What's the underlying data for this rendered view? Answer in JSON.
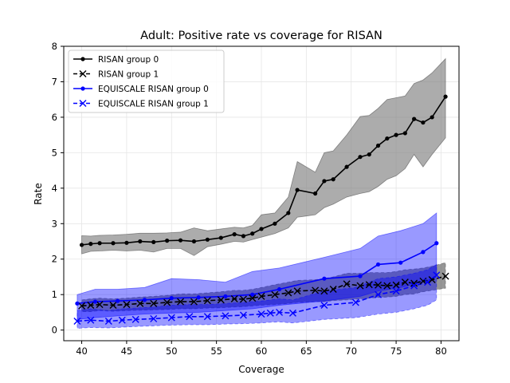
{
  "chart_data": {
    "type": "line",
    "title": "Adult: Positive rate vs coverage for RISAN",
    "xlabel": "Coverage",
    "ylabel": "Rate",
    "xlim": [
      38.0,
      82.0
    ],
    "ylim": [
      -0.3,
      8.0
    ],
    "xticks": [
      40,
      45,
      50,
      55,
      60,
      65,
      70,
      75,
      80
    ],
    "yticks": [
      0,
      1,
      2,
      3,
      4,
      5,
      6,
      7,
      8
    ],
    "grid": true,
    "legend_position": "upper-left",
    "series": [
      {
        "name": "RISAN group 0",
        "color": "#000000",
        "marker": "dot",
        "dash": "solid",
        "band_color": "#808080",
        "x": [
          40,
          41,
          42,
          43.5,
          45,
          46.5,
          48,
          49.5,
          51,
          52.5,
          54,
          55.5,
          57,
          58,
          59,
          60,
          61.5,
          63,
          64,
          66,
          67,
          68,
          69.5,
          71,
          72,
          73,
          74,
          75,
          76,
          77,
          78,
          79,
          80.5
        ],
        "y": [
          2.4,
          2.43,
          2.45,
          2.45,
          2.46,
          2.5,
          2.48,
          2.52,
          2.53,
          2.5,
          2.55,
          2.6,
          2.7,
          2.65,
          2.72,
          2.85,
          3.0,
          3.3,
          3.95,
          3.85,
          4.2,
          4.25,
          4.6,
          4.88,
          4.95,
          5.2,
          5.4,
          5.5,
          5.55,
          5.95,
          5.85,
          6.0,
          6.58
        ],
        "lower": [
          2.15,
          2.22,
          2.23,
          2.25,
          2.23,
          2.25,
          2.2,
          2.3,
          2.3,
          2.1,
          2.35,
          2.42,
          2.5,
          2.48,
          2.55,
          2.62,
          2.72,
          2.88,
          3.18,
          3.25,
          3.45,
          3.55,
          3.75,
          3.85,
          3.9,
          4.05,
          4.25,
          4.35,
          4.55,
          4.95,
          4.6,
          4.95,
          5.42
        ],
        "upper": [
          2.66,
          2.65,
          2.67,
          2.68,
          2.7,
          2.73,
          2.73,
          2.74,
          2.76,
          2.88,
          2.8,
          2.85,
          2.9,
          2.88,
          2.95,
          3.25,
          3.3,
          3.75,
          4.75,
          4.45,
          5.0,
          5.05,
          5.5,
          6.02,
          6.05,
          6.25,
          6.5,
          6.55,
          6.6,
          6.95,
          7.05,
          7.25,
          7.65
        ]
      },
      {
        "name": "RISAN group 1",
        "color": "#000000",
        "marker": "x",
        "dash": "dashed",
        "band_color": "#606060",
        "x": [
          40,
          41,
          42,
          43.5,
          45,
          46.5,
          48,
          49.5,
          51,
          52.5,
          54,
          55.5,
          57,
          58,
          59,
          60,
          61.5,
          63,
          64,
          66,
          67,
          68,
          69.5,
          71,
          72,
          73,
          74,
          75,
          76,
          77,
          78,
          79,
          80.5
        ],
        "y": [
          0.68,
          0.7,
          0.72,
          0.7,
          0.72,
          0.75,
          0.75,
          0.78,
          0.8,
          0.8,
          0.83,
          0.85,
          0.88,
          0.87,
          0.9,
          0.95,
          1.0,
          1.05,
          1.1,
          1.12,
          1.1,
          1.15,
          1.3,
          1.25,
          1.28,
          1.27,
          1.25,
          1.27,
          1.35,
          1.32,
          1.38,
          1.42,
          1.52
        ],
        "lower": [
          0.52,
          0.52,
          0.55,
          0.53,
          0.55,
          0.56,
          0.57,
          0.58,
          0.6,
          0.6,
          0.62,
          0.63,
          0.65,
          0.66,
          0.68,
          0.7,
          0.72,
          0.75,
          0.78,
          0.8,
          0.8,
          0.83,
          0.85,
          0.88,
          0.9,
          0.92,
          0.93,
          0.95,
          1.0,
          1.02,
          1.08,
          1.12,
          1.18
        ],
        "upper": [
          0.85,
          0.88,
          0.9,
          0.88,
          0.9,
          0.93,
          0.95,
          0.98,
          1.02,
          1.02,
          1.05,
          1.08,
          1.12,
          1.12,
          1.15,
          1.2,
          1.28,
          1.35,
          1.4,
          1.42,
          1.45,
          1.5,
          1.6,
          1.6,
          1.62,
          1.62,
          1.62,
          1.65,
          1.7,
          1.72,
          1.75,
          1.8,
          1.9
        ]
      },
      {
        "name": "EQUISCALE RISAN group 0",
        "color": "#0000ff",
        "marker": "dot",
        "dash": "solid",
        "band_color": "#0000ff",
        "x": [
          39.5,
          41.5,
          44,
          47,
          50,
          53,
          56,
          59,
          62,
          67,
          71,
          73,
          75.5,
          78,
          79.5
        ],
        "y": [
          0.75,
          0.8,
          0.82,
          0.85,
          0.9,
          0.92,
          0.95,
          1.0,
          1.15,
          1.45,
          1.52,
          1.85,
          1.9,
          2.2,
          2.45
        ],
        "lower": [
          0.3,
          0.35,
          0.4,
          0.45,
          0.48,
          0.5,
          0.55,
          0.6,
          0.7,
          0.82,
          0.95,
          1.1,
          1.2,
          1.35,
          1.5
        ],
        "upper": [
          1.0,
          1.15,
          1.15,
          1.2,
          1.45,
          1.42,
          1.35,
          1.65,
          1.75,
          2.05,
          2.3,
          2.65,
          2.8,
          3.0,
          3.3
        ]
      },
      {
        "name": "EQUISCALE RISAN group 1",
        "color": "#0000ff",
        "marker": "x",
        "dash": "dashed",
        "band_color": "#0000ff",
        "x": [
          39.5,
          41,
          43,
          44.5,
          46,
          48,
          50,
          52,
          54,
          56,
          58,
          60,
          61,
          62,
          63.5,
          67,
          70.5,
          73,
          75,
          77,
          78.5,
          79.5
        ],
        "y": [
          0.25,
          0.28,
          0.25,
          0.28,
          0.3,
          0.32,
          0.35,
          0.38,
          0.38,
          0.4,
          0.42,
          0.45,
          0.48,
          0.5,
          0.48,
          0.7,
          0.78,
          1.0,
          1.1,
          1.25,
          1.35,
          1.55
        ],
        "lower": [
          0.05,
          0.07,
          0.06,
          0.08,
          0.1,
          0.12,
          0.14,
          0.15,
          0.15,
          0.17,
          0.18,
          0.2,
          0.22,
          0.23,
          0.2,
          0.3,
          0.35,
          0.45,
          0.5,
          0.6,
          0.7,
          0.85
        ],
        "upper": [
          0.55,
          0.6,
          0.55,
          0.6,
          0.62,
          0.65,
          0.7,
          0.72,
          0.72,
          0.75,
          0.78,
          0.82,
          0.85,
          0.88,
          0.85,
          1.1,
          1.2,
          1.45,
          1.5,
          1.6,
          1.7,
          1.85
        ]
      }
    ]
  }
}
